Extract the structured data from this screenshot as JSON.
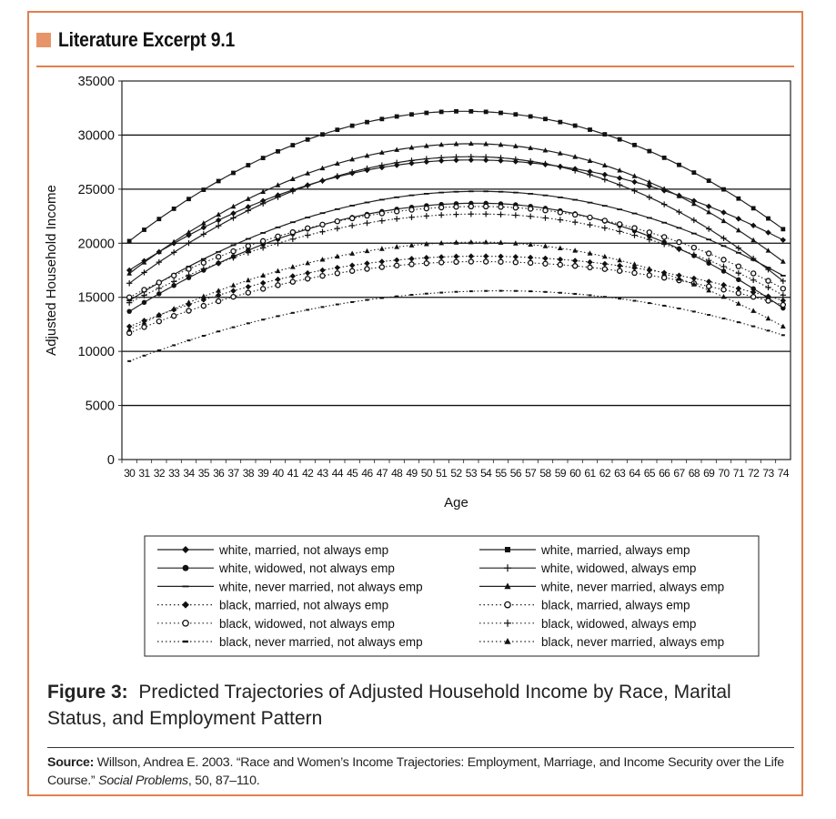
{
  "excerpt": {
    "title": "Literature Excerpt 9.1",
    "accent_color": "#e0804f"
  },
  "caption": {
    "label": "Figure 3:",
    "text": "Predicted Trajectories of Adjusted Household Income by Race, Marital Status, and Employment Pattern"
  },
  "source": {
    "label": "Source:",
    "text_before": "Willson, Andrea E. 2003. “Race and Women’s Income Trajectories: Employment, Marriage, and Income Security over the Life Course.”",
    "journal": "Social Problems",
    "text_after": ", 50, 87–110."
  },
  "chart_data": {
    "type": "line",
    "title": "",
    "xlabel": "Age",
    "ylabel": "Adjusted Household Income",
    "xlim": [
      30,
      74
    ],
    "ylim": [
      0,
      35000
    ],
    "yticks": [
      0,
      5000,
      10000,
      15000,
      20000,
      25000,
      30000,
      35000
    ],
    "grid": "horizontal",
    "legend_position": "bottom",
    "x": [
      30,
      31,
      32,
      33,
      34,
      35,
      36,
      37,
      38,
      39,
      40,
      41,
      42,
      43,
      44,
      45,
      46,
      47,
      48,
      49,
      50,
      51,
      52,
      53,
      54,
      55,
      56,
      57,
      58,
      59,
      60,
      61,
      62,
      63,
      64,
      65,
      66,
      67,
      68,
      69,
      70,
      71,
      72,
      73,
      74
    ],
    "series": [
      {
        "name": "white, married, not always emp",
        "line": "solid",
        "marker": "diamond",
        "start": 17500,
        "peak": 27700,
        "peak_age": 53,
        "end": 20300
      },
      {
        "name": "white, married, always emp",
        "line": "solid",
        "marker": "square",
        "start": 20200,
        "peak": 32200,
        "peak_age": 52.5,
        "end": 21300
      },
      {
        "name": "white, widowed, not always emp",
        "line": "solid",
        "marker": "circle",
        "start": 13700,
        "peak": 23700,
        "peak_age": 53.5,
        "end": 14000
      },
      {
        "name": "white, widowed, always emp",
        "line": "solid",
        "marker": "plus",
        "start": 16300,
        "peak": 28000,
        "peak_age": 53,
        "end": 16500
      },
      {
        "name": "white, never married, not always emp",
        "line": "solid",
        "marker": "dash",
        "start": 14700,
        "peak": 24800,
        "peak_age": 53.5,
        "end": 17000
      },
      {
        "name": "white, never married, always emp",
        "line": "solid",
        "marker": "triangle",
        "start": 17200,
        "peak": 29200,
        "peak_age": 53,
        "end": 18300
      },
      {
        "name": "black, married, not always emp",
        "line": "dotted",
        "marker": "diamond",
        "start": 12300,
        "peak": 18800,
        "peak_age": 53.5,
        "end": 14700
      },
      {
        "name": "black, married, always emp",
        "line": "dotted",
        "marker": "open-circle",
        "start": 15000,
        "peak": 23400,
        "peak_age": 53.5,
        "end": 15800
      },
      {
        "name": "black, widowed, not always emp",
        "line": "dotted",
        "marker": "open-circle",
        "start": 11700,
        "peak": 18300,
        "peak_age": 53.5,
        "end": 14300
      },
      {
        "name": "black, widowed, always emp",
        "line": "dotted",
        "marker": "plus",
        "start": 14500,
        "peak": 22700,
        "peak_age": 53.5,
        "end": 15200
      },
      {
        "name": "black, never married, not always emp",
        "line": "dotted",
        "marker": "none",
        "start": 9100,
        "peak": 15600,
        "peak_age": 55,
        "end": 11500
      },
      {
        "name": "black, never married, always emp",
        "line": "dotted",
        "marker": "triangle",
        "start": 12000,
        "peak": 20100,
        "peak_age": 53.5,
        "end": 12300
      }
    ],
    "legend_order": [
      "white, married, not always emp",
      "white, widowed, not always emp",
      "white, never married, not always emp",
      "black, married, not always emp",
      "black, widowed, not always emp",
      "black, never married, not always emp",
      "white, married, always emp",
      "white, widowed, always emp",
      "white, never married, always emp",
      "black, married, always emp",
      "black, widowed, always emp",
      "black, never married, always emp"
    ]
  }
}
